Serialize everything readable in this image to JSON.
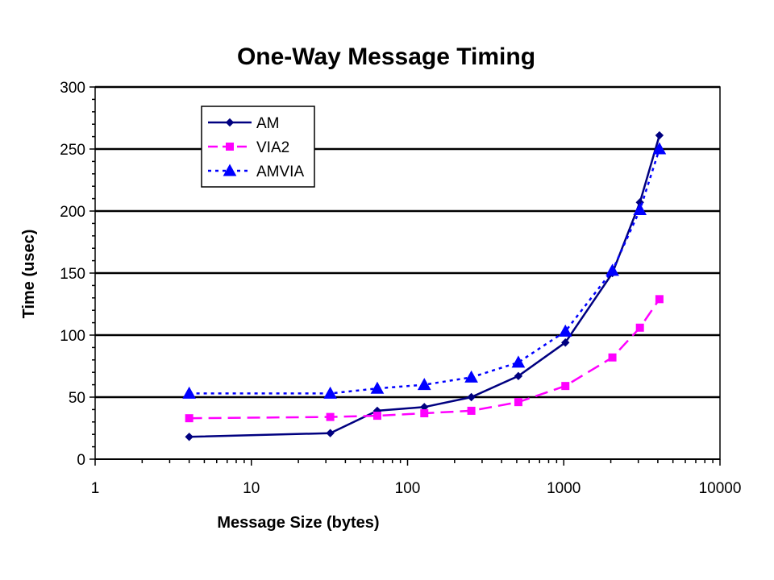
{
  "chart_data": {
    "type": "line",
    "title": "One-Way Message Timing",
    "xlabel": "Message Size (bytes)",
    "ylabel": "Time (usec)",
    "xscale": "log",
    "xlim": [
      1,
      10000
    ],
    "ylim": [
      0,
      300
    ],
    "x_ticks": [
      1,
      10,
      100,
      1000,
      10000
    ],
    "x_tick_labels": [
      "1",
      "10",
      "100",
      "1000",
      "10000"
    ],
    "y_ticks": [
      0,
      50,
      100,
      150,
      200,
      250,
      300
    ],
    "y_tick_labels": [
      "0",
      "50",
      "100",
      "150",
      "200",
      "250",
      "300"
    ],
    "grid": "horizontal major",
    "legend_position": "top-left (inside plot)",
    "series": [
      {
        "name": "AM",
        "color": "#000080",
        "marker": "diamond",
        "line_style": "solid",
        "x": [
          4,
          32,
          64,
          128,
          256,
          512,
          1024,
          2048,
          3072,
          4096
        ],
        "y": [
          18,
          21,
          39,
          42,
          50,
          67,
          94,
          150,
          207,
          261
        ]
      },
      {
        "name": "VIA2",
        "color": "#FF00FF",
        "marker": "square",
        "line_style": "dashed",
        "x": [
          4,
          32,
          64,
          128,
          256,
          512,
          1024,
          2048,
          3072,
          4096
        ],
        "y": [
          33,
          34,
          35,
          37,
          39,
          46,
          59,
          82,
          106,
          129
        ]
      },
      {
        "name": "AMVIA",
        "color": "#0000FF",
        "marker": "triangle",
        "line_style": "dotted",
        "x": [
          4,
          32,
          64,
          128,
          256,
          512,
          1024,
          2048,
          3072,
          4096
        ],
        "y": [
          53,
          53,
          57,
          60,
          66,
          78,
          103,
          152,
          201,
          250
        ]
      }
    ]
  }
}
